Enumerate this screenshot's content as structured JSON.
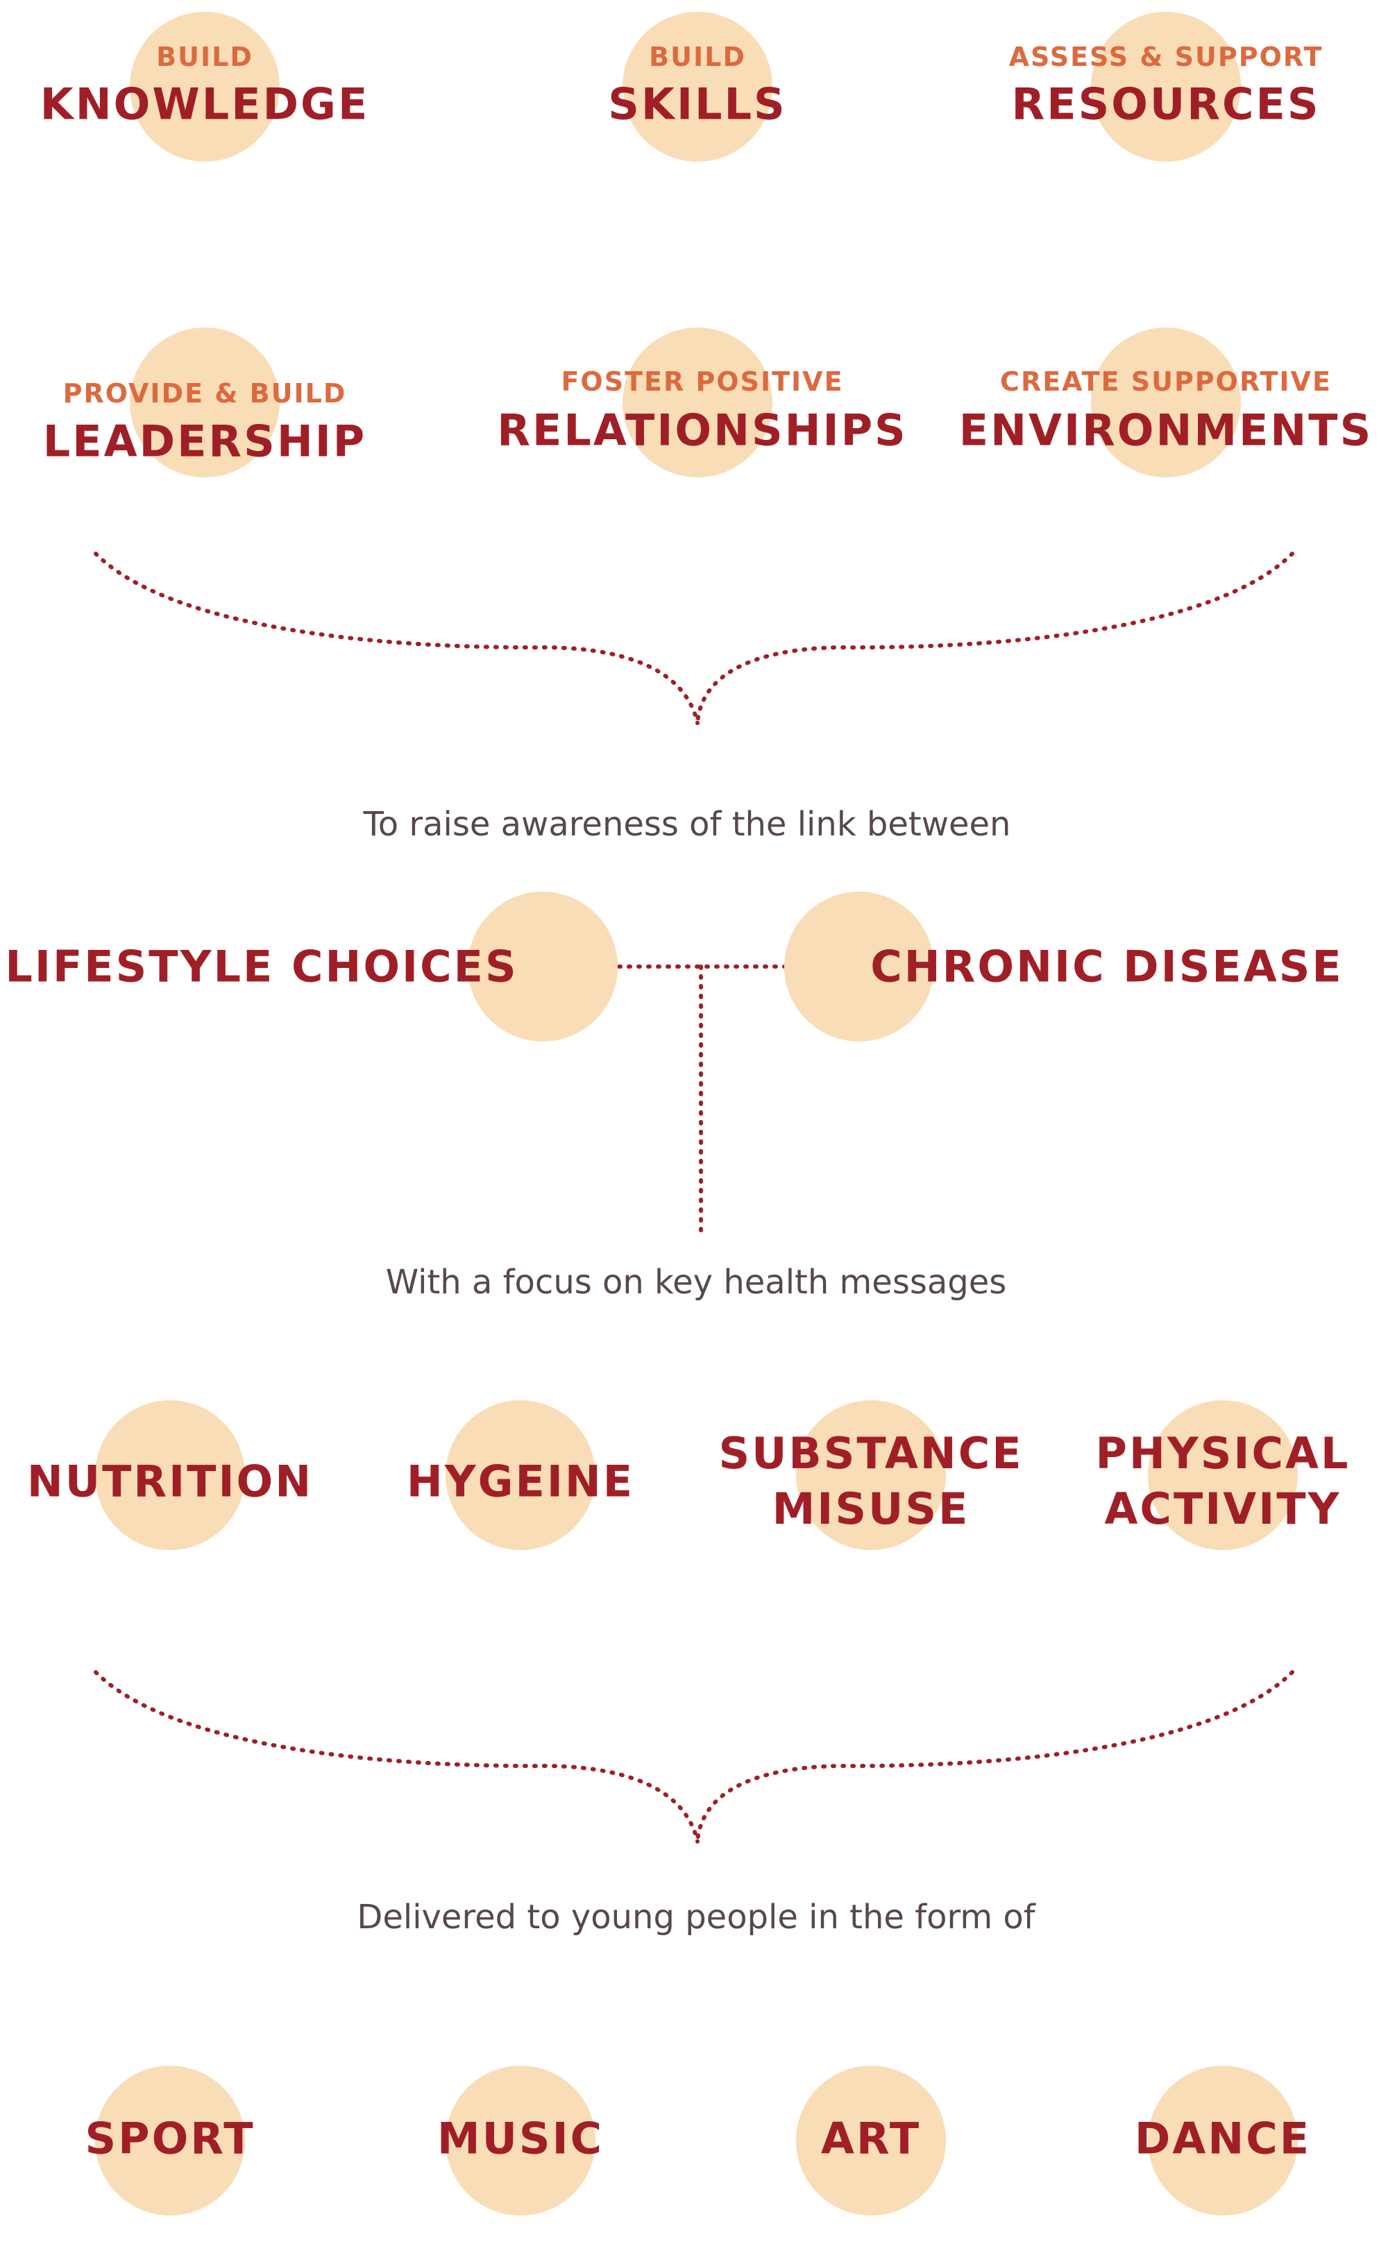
{
  "row1": [
    {
      "sub": "BUILD",
      "main": "KNOWLEDGE"
    },
    {
      "sub": "BUILD",
      "main": "SKILLS"
    },
    {
      "sub": "ASSESS & SUPPORT",
      "main": "RESOURCES"
    }
  ],
  "row2": [
    {
      "sub": "PROVIDE & BUILD",
      "main": "LEADERSHIP"
    },
    {
      "sub": "FOSTER POSITIVE",
      "main": "RELATIONSHIPS"
    },
    {
      "sub": "CREATE SUPPORTIVE",
      "main": "ENVIRONMENTS"
    }
  ],
  "awareness": {
    "lead": "To raise awareness of the link between",
    "left": "LIFESTYLE CHOICES",
    "right": "CHRONIC DISEASE"
  },
  "focus": {
    "lead": "With a focus on key health messages",
    "items": [
      "NUTRITION",
      "HYGEINE",
      "SUBSTANCE MISUSE",
      "PHYSICAL ACTIVITY"
    ]
  },
  "delivery": {
    "lead": "Delivered to young people in the form of",
    "items": [
      "SPORT",
      "MUSIC",
      "ART",
      "DANCE"
    ]
  },
  "colors": {
    "circle": "#f9ddb7",
    "primary": "#a01f26",
    "accent": "#dc6a3f",
    "text": "#57484a"
  }
}
